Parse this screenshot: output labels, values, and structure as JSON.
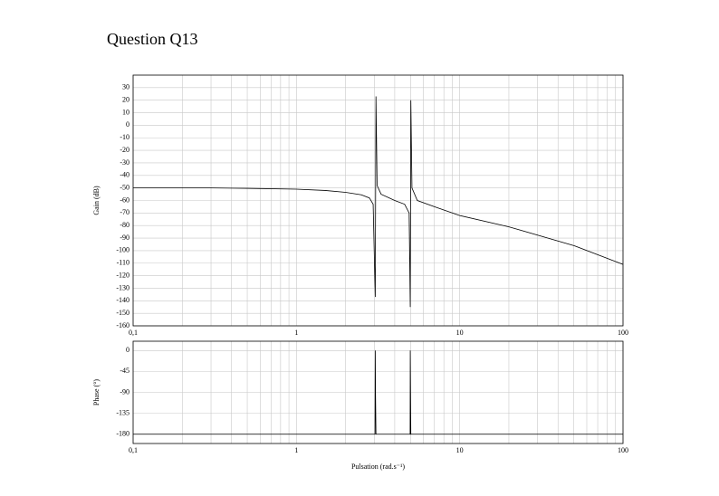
{
  "chart_data": [
    {
      "type": "line",
      "title": "Question Q13",
      "y_label": "Gain (dB)",
      "color": "#000000",
      "log_x": true,
      "grid": true,
      "x": [
        0.1,
        0.3,
        0.5,
        1,
        1.5,
        2,
        2.5,
        2.8,
        2.95,
        3.04,
        3.07,
        3.12,
        3.3,
        4,
        4.6,
        4.9,
        4.98,
        5.02,
        5.1,
        5.5,
        7,
        10,
        20,
        50,
        100
      ],
      "values": [
        -50,
        -50,
        -50.3,
        -51,
        -52,
        -53.5,
        -55.5,
        -58,
        -63,
        -137,
        23,
        -48,
        -55,
        -60,
        -63,
        -70,
        -145,
        20,
        -50,
        -60,
        -65,
        -72,
        -81,
        -96,
        -111
      ],
      "xlim": [
        0.1,
        100
      ],
      "xticks": [
        {
          "value": 0.1,
          "label": "0,1"
        },
        1,
        10,
        100
      ],
      "xminorticks": [
        0.2,
        0.3,
        0.4,
        0.5,
        0.6,
        0.7,
        0.8,
        0.9,
        2,
        3,
        4,
        5,
        6,
        7,
        8,
        9,
        20,
        30,
        40,
        50,
        60,
        70,
        80,
        90
      ],
      "ylim": [
        -160,
        40
      ],
      "yticks": [
        -160,
        -150,
        -140,
        -130,
        -120,
        -110,
        -100,
        -90,
        -80,
        -70,
        -60,
        -50,
        -40,
        -30,
        -20,
        -10,
        0,
        10,
        20,
        30
      ]
    },
    {
      "type": "line",
      "y_label": "Phase (°)",
      "x_label": "Pulsation (rad.s⁻¹)",
      "color": "#000000",
      "log_x": true,
      "grid": true,
      "x": [
        0.1,
        3.03,
        3.04,
        3.05,
        3.07,
        4.97,
        4.98,
        5.0,
        5.02,
        100
      ],
      "values": [
        -180,
        -180,
        0,
        -90,
        -180,
        -180,
        0,
        -90,
        -180,
        -180
      ],
      "xlim": [
        0.1,
        100
      ],
      "xticks": [
        {
          "value": 0.1,
          "label": "0,1"
        },
        1,
        10,
        100
      ],
      "xminorticks": [
        0.2,
        0.3,
        0.4,
        0.5,
        0.6,
        0.7,
        0.8,
        0.9,
        2,
        3,
        4,
        5,
        6,
        7,
        8,
        9,
        20,
        30,
        40,
        50,
        60,
        70,
        80,
        90
      ],
      "ylim": [
        -200,
        20
      ],
      "yticks": [
        -180,
        -135,
        -90,
        -45,
        0
      ]
    }
  ]
}
